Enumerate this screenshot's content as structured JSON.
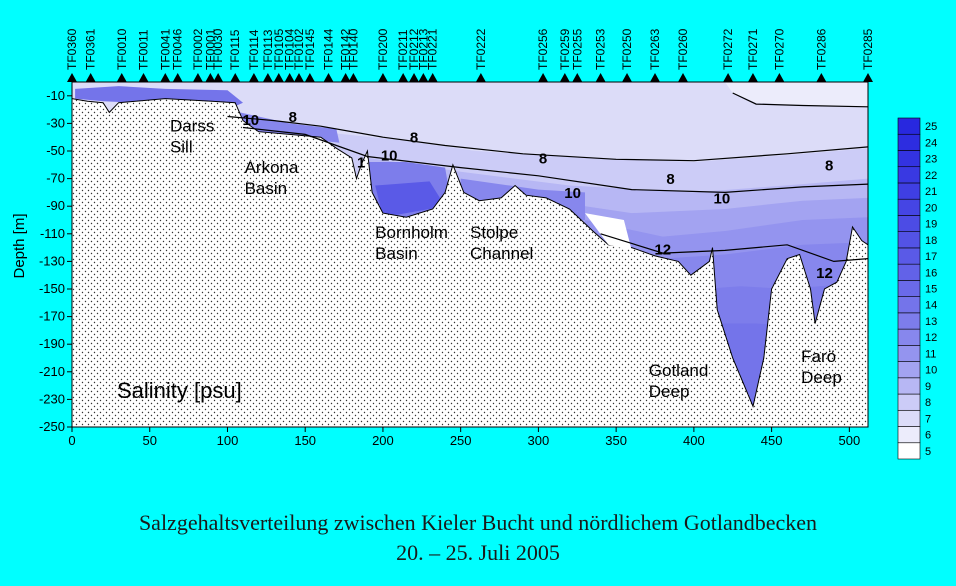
{
  "chart_data": {
    "type": "contour",
    "title": "Salinity [psu]",
    "ylabel": "Depth [m]",
    "xlabel": "",
    "xlim": [
      0,
      512
    ],
    "ylim": [
      -250,
      0
    ],
    "xticks": [
      0,
      50,
      100,
      150,
      200,
      250,
      300,
      350,
      400,
      450,
      500
    ],
    "yticks": [
      -10,
      -30,
      -50,
      -70,
      -90,
      -110,
      -130,
      -150,
      -170,
      -190,
      -210,
      -230,
      -250
    ],
    "stations": [
      {
        "name": "TF0360",
        "x": 0
      },
      {
        "name": "TF0361",
        "x": 12
      },
      {
        "name": "TF0010",
        "x": 32
      },
      {
        "name": "TF0011",
        "x": 46
      },
      {
        "name": "TF0041",
        "x": 60
      },
      {
        "name": "TF0046",
        "x": 68
      },
      {
        "name": "TF0002",
        "x": 81
      },
      {
        "name": "TF0001",
        "x": 89
      },
      {
        "name": "TF0030",
        "x": 94
      },
      {
        "name": "TF0115",
        "x": 105
      },
      {
        "name": "TF0114",
        "x": 117
      },
      {
        "name": "TF0113",
        "x": 126
      },
      {
        "name": "TF0105",
        "x": 133
      },
      {
        "name": "TF0104",
        "x": 140
      },
      {
        "name": "TF0102",
        "x": 146
      },
      {
        "name": "TF0145",
        "x": 153
      },
      {
        "name": "TF0144",
        "x": 165
      },
      {
        "name": "TF0142",
        "x": 176
      },
      {
        "name": "TF0140",
        "x": 181
      },
      {
        "name": "TF0200",
        "x": 200
      },
      {
        "name": "TF0211",
        "x": 213
      },
      {
        "name": "TF0212",
        "x": 220
      },
      {
        "name": "TF0213",
        "x": 226
      },
      {
        "name": "TF0221",
        "x": 232
      },
      {
        "name": "TF0222",
        "x": 263
      },
      {
        "name": "TF0256",
        "x": 303
      },
      {
        "name": "TF0259",
        "x": 317
      },
      {
        "name": "TF0255",
        "x": 325
      },
      {
        "name": "TF0253",
        "x": 340
      },
      {
        "name": "TF0250",
        "x": 357
      },
      {
        "name": "TF0263",
        "x": 375
      },
      {
        "name": "TF0260",
        "x": 393
      },
      {
        "name": "TF0272",
        "x": 422
      },
      {
        "name": "TF0271",
        "x": 438
      },
      {
        "name": "TF0270",
        "x": 455
      },
      {
        "name": "TF0286",
        "x": 482
      },
      {
        "name": "TF0285",
        "x": 512
      }
    ],
    "colorbar": {
      "levels": [
        5,
        6,
        7,
        8,
        9,
        10,
        11,
        12,
        13,
        14,
        15,
        16,
        17,
        18,
        19,
        20,
        21,
        22,
        23,
        24,
        25
      ],
      "colors": [
        "#ffffff",
        "#ececfb",
        "#dcdcf8",
        "#ccccf7",
        "#b7b7f4",
        "#a3a3f1",
        "#9494ef",
        "#8787ed",
        "#7d7deb",
        "#7474ea",
        "#6a6ae9",
        "#6262e8",
        "#5a5ae7",
        "#5353e6",
        "#4c4ce5",
        "#4545e4",
        "#3f3fe3",
        "#3939e2",
        "#3333e1",
        "#2d2de0",
        "#2828df"
      ]
    },
    "contour_labels": [
      {
        "text": "10",
        "x": 115,
        "y": -31
      },
      {
        "text": "8",
        "x": 142,
        "y": -29
      },
      {
        "text": "1",
        "x": 186,
        "y": -62
      },
      {
        "text": "10",
        "x": 204,
        "y": -57
      },
      {
        "text": "8",
        "x": 220,
        "y": -44
      },
      {
        "text": "8",
        "x": 303,
        "y": -59
      },
      {
        "text": "10",
        "x": 322,
        "y": -84
      },
      {
        "text": "8",
        "x": 385,
        "y": -74
      },
      {
        "text": "10",
        "x": 418,
        "y": -88
      },
      {
        "text": "12",
        "x": 380,
        "y": -125
      },
      {
        "text": "8",
        "x": 487,
        "y": -64
      },
      {
        "text": "12",
        "x": 484,
        "y": -142
      }
    ],
    "region_labels": [
      {
        "lines": [
          "Darss",
          "Sill"
        ],
        "x": 63,
        "y": -36
      },
      {
        "lines": [
          "Arkona",
          "Basin"
        ],
        "x": 111,
        "y": -66
      },
      {
        "lines": [
          "Bornholm",
          "Basin"
        ],
        "x": 195,
        "y": -113
      },
      {
        "lines": [
          "Stolpe",
          "Channel"
        ],
        "x": 256,
        "y": -113
      },
      {
        "lines": [
          "Gotland",
          "Deep"
        ],
        "x": 371,
        "y": -213
      },
      {
        "lines": [
          "Farö",
          "Deep"
        ],
        "x": 469,
        "y": -203
      }
    ],
    "caption_line1": "Salzgehaltsverteilung zwischen Kieler Bucht und nördlichem Gotlandbecken",
    "caption_line2": "20. – 25. Juli 2005"
  }
}
